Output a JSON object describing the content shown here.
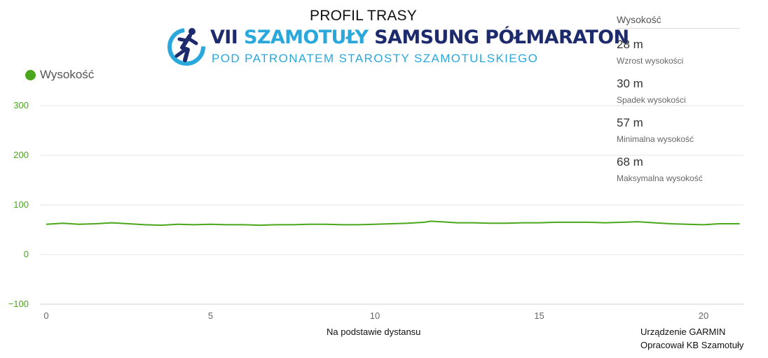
{
  "title": "PROFIL TRASY",
  "logo": {
    "line1_part1": "VII ",
    "line1_part2": "SZAMOTUŁY",
    "line1_part3": " SAMSUNG PÓŁMARATON",
    "line2": "POD PATRONATEM  STAROSTY SZAMOTULSKIEGO",
    "icon": "runner-icon"
  },
  "legend": {
    "label": "Wysokość",
    "color": "#4aa71b"
  },
  "stats": {
    "heading": "Wysokość",
    "items": [
      {
        "value": "28 m",
        "label": "Wzrost wysokości"
      },
      {
        "value": "30 m",
        "label": "Spadek wysokości"
      },
      {
        "value": "57 m",
        "label": "Minimalna wysokość"
      },
      {
        "value": "68 m",
        "label": "Maksymalna wysokość"
      }
    ]
  },
  "x_axis_title": "Na podstawie dystansu",
  "footer": {
    "device": "Urządzenie GARMIN",
    "author": "Opracował KB Szamotuły"
  },
  "colors": {
    "line": "#4aa71b",
    "y_tick": "#4aa71b",
    "x_tick": "#666666",
    "grid": "#e6e6e6"
  },
  "chart_data": {
    "type": "line",
    "series": [
      {
        "name": "Wysokość",
        "x": [
          0,
          0.5,
          1,
          1.5,
          2,
          2.5,
          3,
          3.5,
          4,
          4.5,
          5,
          5.5,
          6,
          6.5,
          7,
          7.5,
          8,
          8.5,
          9,
          9.5,
          10,
          10.5,
          11,
          11.5,
          11.7,
          12,
          12.5,
          13,
          13.5,
          14,
          14.5,
          15,
          15.5,
          16,
          16.5,
          17,
          17.5,
          18,
          18.5,
          19,
          19.5,
          20,
          20.5,
          21.1
        ],
        "y": [
          61,
          63,
          61,
          62,
          64,
          62,
          60,
          59,
          61,
          60,
          61,
          60,
          60,
          59,
          60,
          60,
          61,
          61,
          60,
          60,
          61,
          62,
          63,
          65,
          67,
          66,
          64,
          64,
          63,
          63,
          64,
          64,
          65,
          65,
          65,
          64,
          65,
          66,
          64,
          62,
          61,
          60,
          62,
          62
        ]
      }
    ],
    "xticks": [
      0,
      5,
      10,
      15,
      20
    ],
    "yticks": [
      -100,
      0,
      100,
      200,
      300
    ],
    "xlim": [
      0,
      21.1
    ],
    "ylim": [
      -100,
      300
    ],
    "xlabel": "Na podstawie dystansu",
    "ylabel": "",
    "grid": true,
    "legend_position": "top-left"
  }
}
